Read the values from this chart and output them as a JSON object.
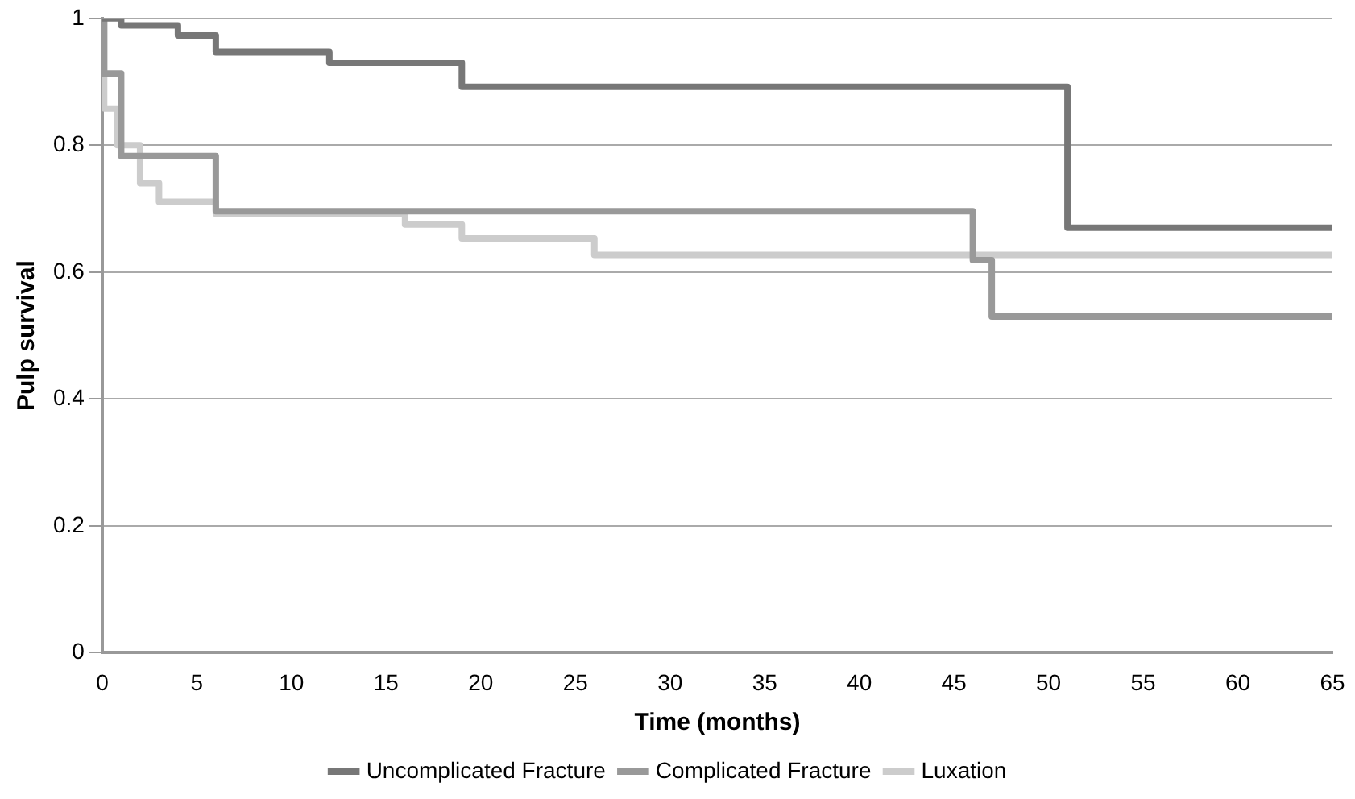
{
  "chart_data": {
    "type": "step",
    "xlabel": "Time (months)",
    "ylabel": "Pulp survival",
    "xlim": [
      0,
      65
    ],
    "xticks": [
      0,
      5,
      10,
      15,
      20,
      25,
      30,
      35,
      40,
      45,
      50,
      55,
      60,
      65
    ],
    "ylim": [
      0,
      1
    ],
    "yticks": [
      0,
      0.2,
      0.4,
      0.6,
      0.8,
      1
    ],
    "grid": "y",
    "legend": "bottom",
    "marker": "none",
    "line_style": "solid",
    "series": [
      {
        "name": "Uncomplicated Fracture",
        "color": "#777777",
        "x": [
          0,
          1,
          4,
          6,
          12,
          19,
          51,
          65
        ],
        "values": [
          1,
          0.989,
          0.973,
          0.947,
          0.93,
          0.892,
          0.67,
          0.67
        ]
      },
      {
        "name": "Complicated Fracture",
        "color": "#999999",
        "x": [
          0,
          0.1,
          1,
          6,
          46,
          47,
          65
        ],
        "values": [
          1,
          0.913,
          0.783,
          0.696,
          0.619,
          0.53,
          0.53
        ]
      },
      {
        "name": "Luxation",
        "color": "#cccccc",
        "x": [
          0,
          0.1,
          0.8,
          2,
          3,
          6,
          16,
          19,
          26,
          65
        ],
        "values": [
          1,
          0.858,
          0.8,
          0.74,
          0.711,
          0.692,
          0.675,
          0.653,
          0.627,
          0.627
        ]
      }
    ]
  }
}
